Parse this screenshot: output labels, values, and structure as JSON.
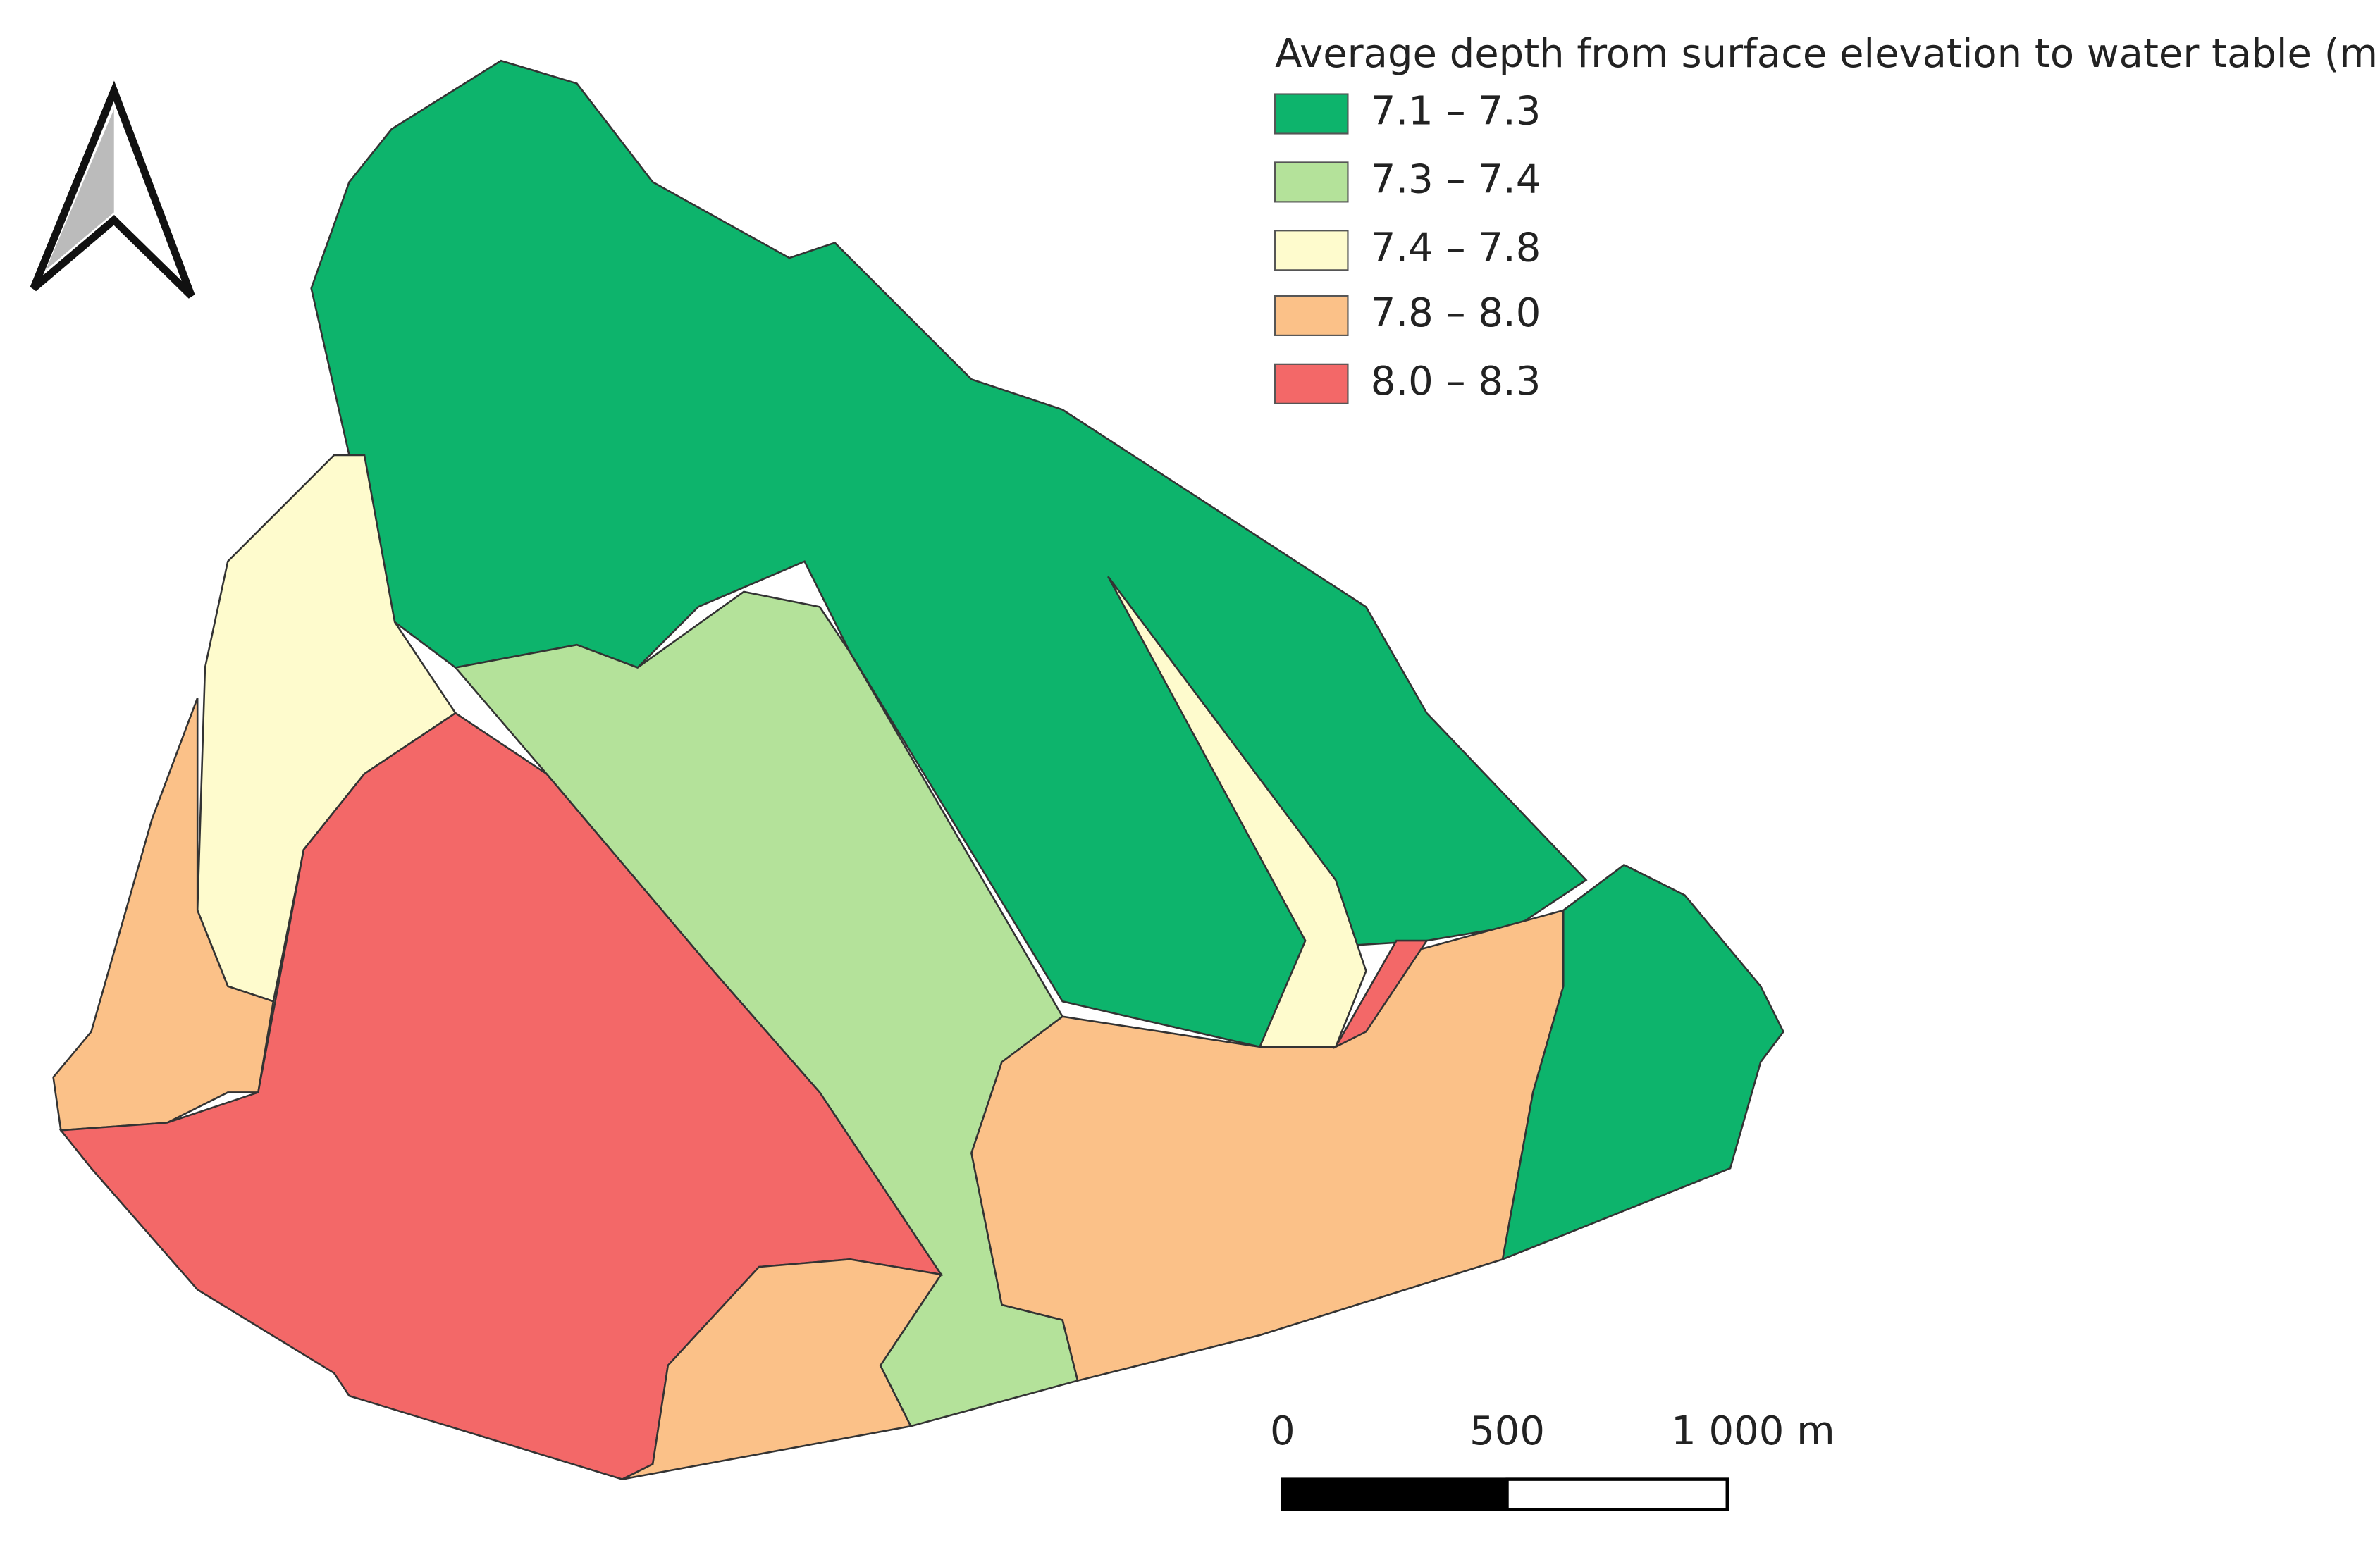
{
  "legend": {
    "title": "Average depth from surface elevation to water table (m)",
    "items": [
      {
        "label": "7.1 – 7.3",
        "color": "#0db46c"
      },
      {
        "label": "7.3 – 7.4",
        "color": "#b4e29a"
      },
      {
        "label": "7.4 – 7.8",
        "color": "#fefbcd"
      },
      {
        "label": "7.8 – 8.0",
        "color": "#fbc188"
      },
      {
        "label": "8.0 – 8.3",
        "color": "#f36868"
      }
    ]
  },
  "scale_bar": {
    "labels": [
      "0",
      "500",
      "1 000 m"
    ]
  }
}
